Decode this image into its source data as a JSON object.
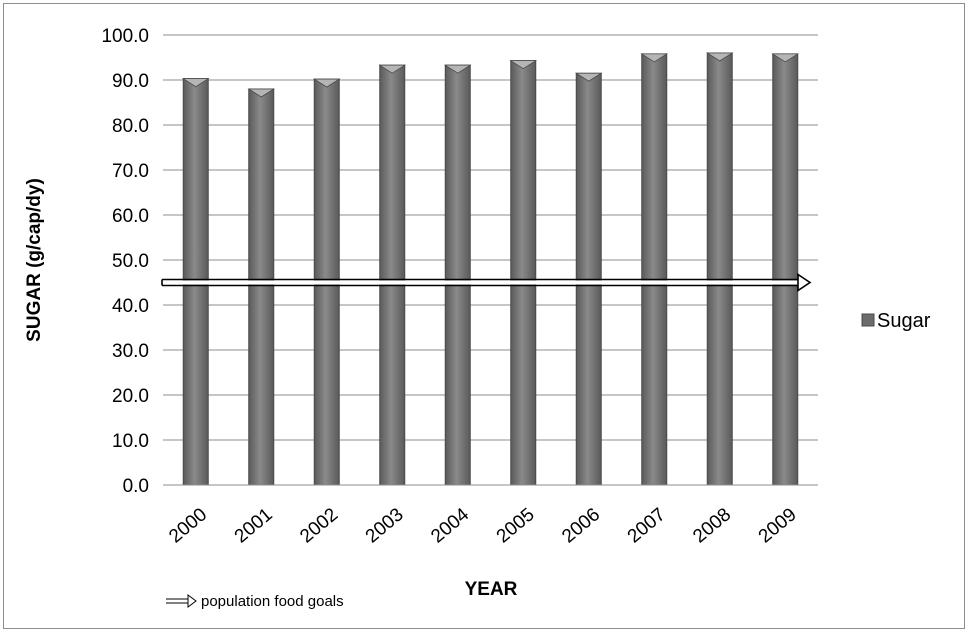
{
  "chart_data": {
    "type": "bar",
    "categories": [
      "2000",
      "2001",
      "2002",
      "2003",
      "2004",
      "2005",
      "2006",
      "2007",
      "2008",
      "2009"
    ],
    "series": [
      {
        "name": "Sugar",
        "values": [
          90.3,
          88.0,
          90.2,
          93.3,
          93.3,
          94.3,
          91.5,
          95.8,
          96.0,
          95.8
        ]
      }
    ],
    "xlabel": "YEAR",
    "ylabel": "SUGAR (g/cap/dy)",
    "ylim": [
      0,
      100
    ],
    "yticks": [
      "0.0",
      "10.0",
      "20.0",
      "30.0",
      "40.0",
      "50.0",
      "60.0",
      "70.0",
      "80.0",
      "90.0",
      "100.0"
    ],
    "reference_line": {
      "label": "population food goals",
      "value": 45
    },
    "legend_position": "right",
    "grid": true,
    "colors": {
      "bar": "#6b6b6b",
      "bar_edge": "#4a4a4a",
      "grid": "#8c8c8c"
    }
  }
}
